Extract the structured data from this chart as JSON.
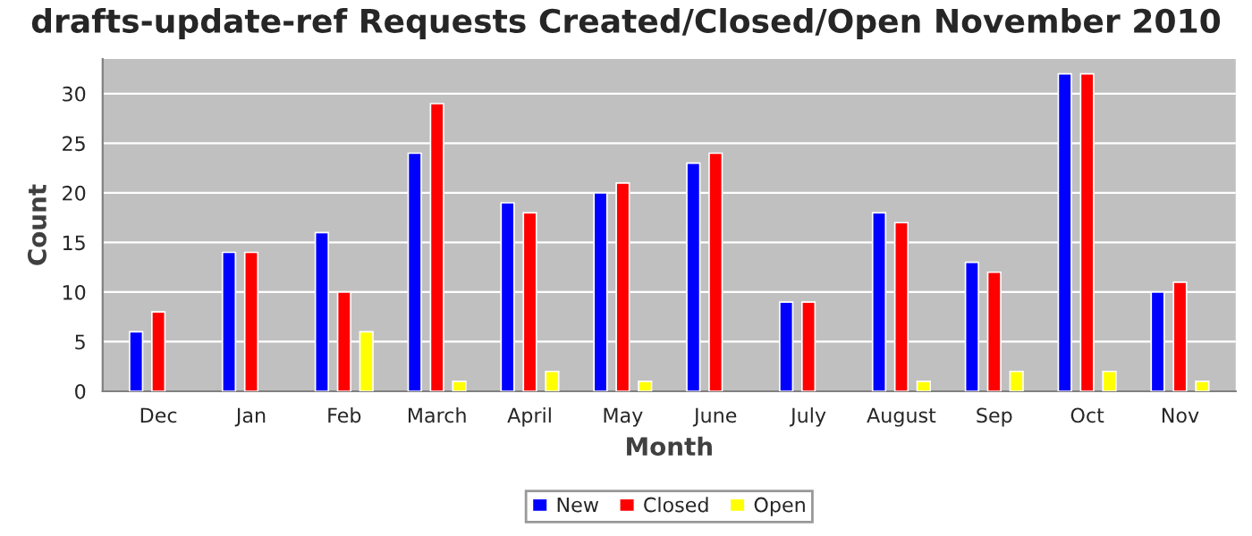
{
  "chart_data": {
    "type": "bar",
    "title": "drafts-update-ref Requests Created/Closed/Open November 2010",
    "xlabel": "Month",
    "ylabel": "Count",
    "categories": [
      "Dec",
      "Jan",
      "Feb",
      "March",
      "April",
      "May",
      "June",
      "July",
      "August",
      "Sep",
      "Oct",
      "Nov"
    ],
    "series": [
      {
        "name": "New",
        "color": "#0000ff",
        "values": [
          6,
          14,
          16,
          24,
          19,
          20,
          23,
          9,
          18,
          13,
          32,
          10
        ]
      },
      {
        "name": "Closed",
        "color": "#ff0000",
        "values": [
          8,
          14,
          10,
          29,
          18,
          21,
          24,
          9,
          17,
          12,
          32,
          11
        ]
      },
      {
        "name": "Open",
        "color": "#ffff00",
        "values": [
          0,
          0,
          6,
          1,
          2,
          1,
          0,
          0,
          1,
          2,
          2,
          1
        ]
      }
    ],
    "ylim": [
      0,
      33.5
    ],
    "yticks": [
      0,
      5,
      10,
      15,
      20,
      25,
      30
    ],
    "grid": "y",
    "legend": "bottom"
  }
}
